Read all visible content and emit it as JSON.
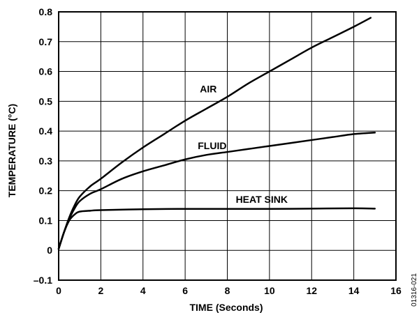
{
  "chart_data": {
    "type": "line",
    "title": "",
    "xlabel": "TIME (Seconds)",
    "ylabel": "TEMPERATURE (°C)",
    "xlim": [
      0,
      16
    ],
    "ylim": [
      -0.1,
      0.8
    ],
    "x_ticks": [
      0,
      2,
      4,
      6,
      8,
      10,
      12,
      14,
      16
    ],
    "y_ticks": [
      -0.1,
      0,
      0.1,
      0.2,
      0.3,
      0.4,
      0.5,
      0.6,
      0.7,
      0.8
    ],
    "x_tick_labels": [
      "0",
      "2",
      "4",
      "6",
      "8",
      "10",
      "12",
      "14",
      "16"
    ],
    "y_tick_labels": [
      "–0.1",
      "0",
      "0.1",
      "0.2",
      "0.3",
      "0.4",
      "0.5",
      "0.6",
      "0.7",
      "0.8"
    ],
    "grid": true,
    "legend": "none",
    "series": [
      {
        "name": "AIR",
        "color": "#000000",
        "x": [
          0,
          0.25,
          0.5,
          0.75,
          1,
          1.5,
          2,
          3,
          4,
          5,
          6,
          7,
          8,
          9,
          10,
          11,
          12,
          13,
          14,
          14.8
        ],
        "y": [
          0.005,
          0.06,
          0.11,
          0.15,
          0.18,
          0.215,
          0.24,
          0.295,
          0.345,
          0.39,
          0.435,
          0.475,
          0.515,
          0.56,
          0.6,
          0.64,
          0.68,
          0.715,
          0.75,
          0.78
        ]
      },
      {
        "name": "FLUID",
        "color": "#000000",
        "x": [
          0,
          0.25,
          0.5,
          0.75,
          1,
          1.5,
          2,
          3,
          4,
          5,
          6,
          7,
          8,
          9,
          10,
          11,
          12,
          13,
          14,
          15
        ],
        "y": [
          0.005,
          0.06,
          0.105,
          0.14,
          0.165,
          0.19,
          0.205,
          0.24,
          0.265,
          0.285,
          0.305,
          0.32,
          0.33,
          0.34,
          0.35,
          0.36,
          0.37,
          0.38,
          0.39,
          0.395
        ]
      },
      {
        "name": "HEAT SINK",
        "color": "#000000",
        "x": [
          0,
          0.25,
          0.5,
          0.75,
          1,
          1.5,
          2,
          4,
          6,
          8,
          10,
          12,
          14,
          15
        ],
        "y": [
          0.005,
          0.06,
          0.1,
          0.12,
          0.13,
          0.133,
          0.135,
          0.138,
          0.139,
          0.139,
          0.139,
          0.14,
          0.141,
          0.14
        ]
      }
    ],
    "annotations": [
      {
        "text": "AIR",
        "x": 6.7,
        "y": 0.53
      },
      {
        "text": "FLUID",
        "x": 6.6,
        "y": 0.34
      },
      {
        "text": "HEAT SINK",
        "x": 8.4,
        "y": 0.16
      }
    ],
    "figure_id": "01316-021"
  }
}
